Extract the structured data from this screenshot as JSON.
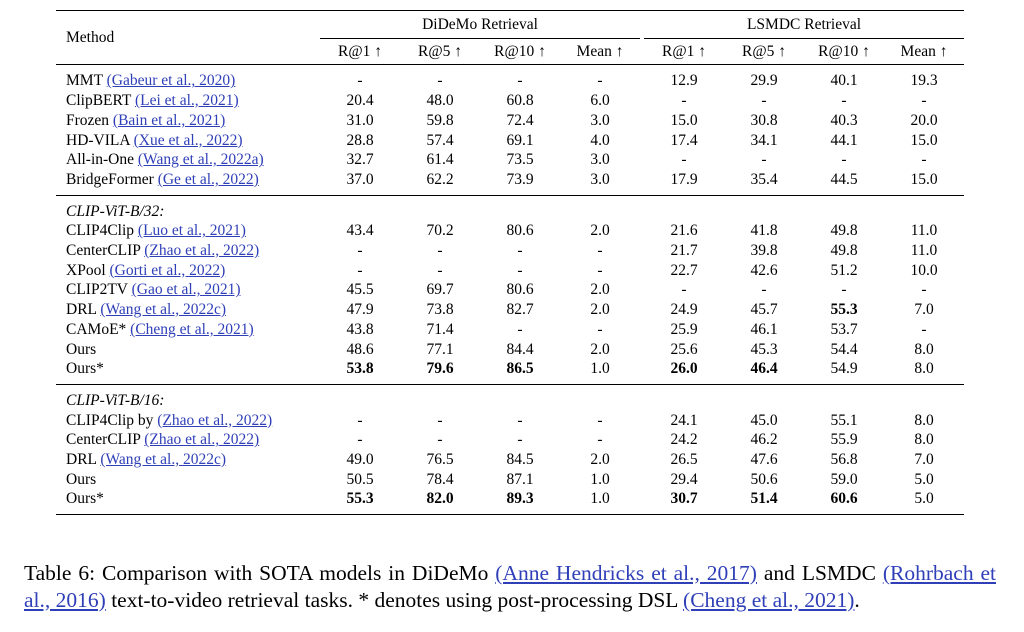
{
  "table": {
    "method_header": "Method",
    "groups": [
      "DiDeMo Retrieval",
      "LSMDC Retrieval"
    ],
    "metrics": [
      "R@1 ↑",
      "R@5 ↑",
      "R@10 ↑",
      "Mean ↑"
    ],
    "section1": [
      {
        "name": "MMT",
        "cite": "(Gabeur et al., 2020)",
        "d": [
          "-",
          "-",
          "-",
          "-"
        ],
        "l": [
          "12.9",
          "29.9",
          "40.1",
          "19.3"
        ]
      },
      {
        "name": "ClipBERT",
        "cite": "(Lei et al., 2021)",
        "d": [
          "20.4",
          "48.0",
          "60.8",
          "6.0"
        ],
        "l": [
          "-",
          "-",
          "-",
          "-"
        ]
      },
      {
        "name": "Frozen",
        "cite": "(Bain et al., 2021)",
        "d": [
          "31.0",
          "59.8",
          "72.4",
          "3.0"
        ],
        "l": [
          "15.0",
          "30.8",
          "40.3",
          "20.0"
        ]
      },
      {
        "name": "HD-VILA",
        "cite": "(Xue et al., 2022)",
        "d": [
          "28.8",
          "57.4",
          "69.1",
          "4.0"
        ],
        "l": [
          "17.4",
          "34.1",
          "44.1",
          "15.0"
        ]
      },
      {
        "name": "All-in-One",
        "cite": "(Wang et al., 2022a)",
        "d": [
          "32.7",
          "61.4",
          "73.5",
          "3.0"
        ],
        "l": [
          "-",
          "-",
          "-",
          "-"
        ]
      },
      {
        "name": "BridgeFormer",
        "cite": "(Ge et al., 2022)",
        "d": [
          "37.0",
          "62.2",
          "73.9",
          "3.0"
        ],
        "l": [
          "17.9",
          "35.4",
          "44.5",
          "15.0"
        ]
      }
    ],
    "section2_label": "CLIP-ViT-B/32:",
    "section2": [
      {
        "name": "CLIP4Clip",
        "cite": "(Luo et al., 2021)",
        "d": [
          "43.4",
          "70.2",
          "80.6",
          "2.0"
        ],
        "l": [
          "21.6",
          "41.8",
          "49.8",
          "11.0"
        ]
      },
      {
        "name": "CenterCLIP",
        "cite": "(Zhao et al., 2022)",
        "d": [
          "-",
          "-",
          "-",
          "-"
        ],
        "l": [
          "21.7",
          "39.8",
          "49.8",
          "11.0"
        ]
      },
      {
        "name": "XPool",
        "cite": "(Gorti et al., 2022)",
        "d": [
          "-",
          "-",
          "-",
          "-"
        ],
        "l": [
          "22.7",
          "42.6",
          "51.2",
          "10.0"
        ]
      },
      {
        "name": "CLIP2TV",
        "cite": "(Gao et al., 2021)",
        "d": [
          "45.5",
          "69.7",
          "80.6",
          "2.0"
        ],
        "l": [
          "-",
          "-",
          "-",
          "-"
        ]
      },
      {
        "name": "DRL",
        "cite": "(Wang et al., 2022c)",
        "d": [
          "47.9",
          "73.8",
          "82.7",
          "2.0"
        ],
        "l": [
          "24.9",
          "45.7",
          "55.3",
          "7.0"
        ]
      },
      {
        "name": "CAMoE*",
        "cite": "(Cheng et al., 2021)",
        "d": [
          "43.8",
          "71.4",
          "-",
          "-"
        ],
        "l": [
          "25.9",
          "46.1",
          "53.7",
          "-"
        ]
      },
      {
        "name": "Ours",
        "cite": "",
        "d": [
          "48.6",
          "77.1",
          "84.4",
          "2.0"
        ],
        "l": [
          "25.6",
          "45.3",
          "54.4",
          "8.0"
        ]
      },
      {
        "name": "Ours*",
        "cite": "",
        "d": [
          "53.8",
          "79.6",
          "86.5",
          "1.0"
        ],
        "l": [
          "26.0",
          "46.4",
          "54.9",
          "8.0"
        ]
      }
    ],
    "section3_label": "CLIP-ViT-B/16:",
    "section3": [
      {
        "name": "CLIP4Clip by",
        "cite": "(Zhao et al., 2022)",
        "d": [
          "-",
          "-",
          "-",
          "-"
        ],
        "l": [
          "24.1",
          "45.0",
          "55.1",
          "8.0"
        ]
      },
      {
        "name": "CenterCLIP",
        "cite": "(Zhao et al., 2022)",
        "d": [
          "-",
          "-",
          "-",
          "-"
        ],
        "l": [
          "24.2",
          "46.2",
          "55.9",
          "8.0"
        ]
      },
      {
        "name": "DRL",
        "cite": "(Wang et al., 2022c)",
        "d": [
          "49.0",
          "76.5",
          "84.5",
          "2.0"
        ],
        "l": [
          "26.5",
          "47.6",
          "56.8",
          "7.0"
        ]
      },
      {
        "name": "Ours",
        "cite": "",
        "d": [
          "50.5",
          "78.4",
          "87.1",
          "1.0"
        ],
        "l": [
          "29.4",
          "50.6",
          "59.0",
          "5.0"
        ]
      },
      {
        "name": "Ours*",
        "cite": "",
        "d": [
          "55.3",
          "82.0",
          "89.3",
          "1.0"
        ],
        "l": [
          "30.7",
          "51.4",
          "60.6",
          "5.0"
        ]
      }
    ]
  },
  "caption": {
    "p1": "Table 6:  Comparison with SOTA models in DiDeMo ",
    "c1": "(Anne Hendricks et al., 2017)",
    "p2": " and LSMDC ",
    "c2": "(Rohrbach et al., 2016)",
    "p3": " text-to-video retrieval tasks. * denotes using post-processing DSL ",
    "c3": "(Cheng et al., 2021)",
    "p4": "."
  }
}
